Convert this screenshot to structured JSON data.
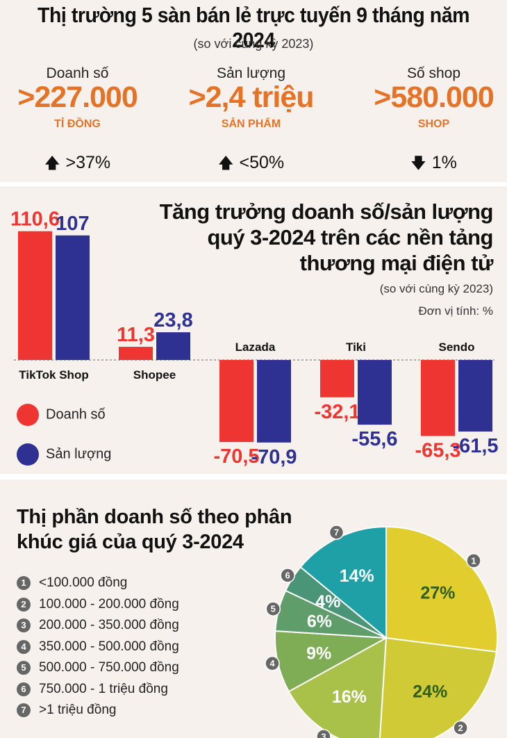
{
  "summary": {
    "title": "Thị trường 5 sàn bán lẻ trực tuyến 9 tháng năm 2024",
    "subtitle": "(so với cùng kỳ 2023)",
    "stats": [
      {
        "label": "Doanh số",
        "value": ">227.000",
        "unit": "TỈ ĐỒNG",
        "direction": "up",
        "change": ">37%"
      },
      {
        "label": "Sản lượng",
        "value": ">2,4 triệu",
        "unit": "SẢN PHẨM",
        "direction": "up",
        "change": "<50%"
      },
      {
        "label": "Số shop",
        "value": ">580.000",
        "unit": "SHOP",
        "direction": "down",
        "change": "1%"
      }
    ]
  },
  "colors": {
    "revenue": "#ee3531",
    "volume": "#2e3192",
    "accent": "#e57327"
  },
  "chart_data": [
    {
      "type": "bar",
      "title": "Tăng trưởng doanh số/sản lượng quý 3-2024 trên các nền tảng thương mại điện tử",
      "title_lines": [
        "Tăng trưởng doanh số/sản lượng",
        "quý 3-2024 trên các nền tảng",
        "thương mại điện tử"
      ],
      "subtitle": "(so với cùng kỳ 2023)",
      "unit_note": "Đơn vị tính: %",
      "categories": [
        "TikTok Shop",
        "Shopee",
        "Lazada",
        "Tiki",
        "Sendo"
      ],
      "series": [
        {
          "name": "Doanh số",
          "values": [
            110.6,
            11.3,
            -70.5,
            -32.1,
            -65.3
          ],
          "labels": [
            "110,6",
            "11,3",
            "-70,5",
            "-32,1",
            "-65,3"
          ]
        },
        {
          "name": "Sản lượng",
          "values": [
            107,
            23.8,
            -70.9,
            -55.6,
            -61.5
          ],
          "labels": [
            "107",
            "23,8",
            "-70,9",
            "-55,6",
            "-61,5"
          ]
        }
      ],
      "ylim": [
        -75,
        115
      ],
      "legend": "bottom-left",
      "grid": false
    },
    {
      "type": "pie",
      "title": "Thị phần doanh số theo phân khúc giá của quý 3-2024",
      "title_lines": [
        "Thị phần doanh số theo phân",
        "khúc giá của quý 3-2024"
      ],
      "slices": [
        {
          "num": "1",
          "label": "<100.000 đồng",
          "value": 27,
          "text": "27%",
          "color": "#e2cd2e"
        },
        {
          "num": "2",
          "label": "100.000 - 200.000 đồng",
          "value": 24,
          "text": "24%",
          "color": "#cfca35"
        },
        {
          "num": "3",
          "label": "200.000 - 350.000 đồng",
          "value": 16,
          "text": "16%",
          "color": "#a9c049"
        },
        {
          "num": "4",
          "label": "350.000 - 500.000 đồng",
          "value": 9,
          "text": "9%",
          "color": "#7fad55"
        },
        {
          "num": "5",
          "label": "500.000 - 750.000 đồng",
          "value": 6,
          "text": "6%",
          "color": "#5f9e6a"
        },
        {
          "num": "6",
          "label": "750.000 - 1 triệu đồng",
          "value": 4,
          "text": "4%",
          "color": "#4a9478"
        },
        {
          "num": "7",
          "label": ">1 triệu đồng",
          "value": 14,
          "text": "14%",
          "color": "#1fa0a6"
        }
      ],
      "legend": "left"
    }
  ]
}
